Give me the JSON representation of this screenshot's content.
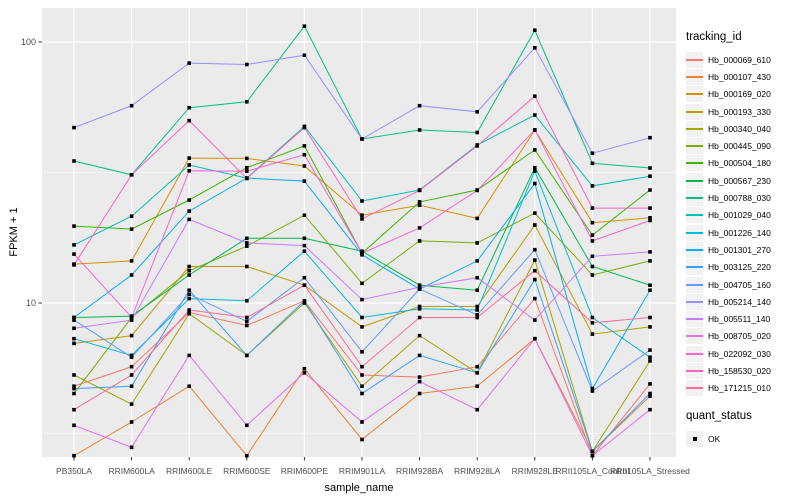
{
  "figure": {
    "bg": "#FFFFFF",
    "panel_bg": "#EBEBEB",
    "grid_color": "#FFFFFF",
    "tick_color": "#333333",
    "tick_label_color": "#4D4D4D",
    "point_color": "#000000"
  },
  "chart_data": {
    "type": "line",
    "xlabel": "sample_name",
    "ylabel": "FPKM + 1",
    "y_scale": "log10",
    "y_ticks": [
      100,
      10
    ],
    "y_tick_labels": [
      "100",
      "10"
    ],
    "ylim": [
      2.5,
      120
    ],
    "grid": true,
    "points_shape": "square",
    "legend_position": "right",
    "categories": [
      "PB350LA",
      "RRIM600LA",
      "RRIM600LE",
      "RRIM600SE",
      "RRIM600PE",
      "RRIM901LA",
      "RRIM928BA",
      "RRIM928LA",
      "RRIM928LE",
      "RRII105LA_Control",
      "RRII105LA_Stressed"
    ],
    "series": [
      {
        "name": "Hb_000069_610",
        "color": "#F8766D",
        "values": [
          4.8,
          5.7,
          9.2,
          8.2,
          10.2,
          5.3,
          5.2,
          5.7,
          10.4,
          2.6,
          4.9
        ]
      },
      {
        "name": "Hb_000107_430",
        "color": "#EA8331",
        "values": [
          2.6,
          3.5,
          4.8,
          2.6,
          5.6,
          3.0,
          4.5,
          4.8,
          7.3,
          2.7,
          4.4
        ]
      },
      {
        "name": "Hb_000169_020",
        "color": "#D89000",
        "values": [
          14.1,
          14.5,
          35.9,
          35.8,
          33.5,
          21.7,
          23.7,
          21.1,
          46.0,
          20.3,
          21.2
        ]
      },
      {
        "name": "Hb_000193_330",
        "color": "#C09B00",
        "values": [
          7.0,
          7.5,
          13.8,
          13.8,
          11.7,
          8.1,
          9.7,
          9.7,
          19.9,
          7.6,
          8.1
        ]
      },
      {
        "name": "Hb_000340_040",
        "color": "#A3A500",
        "values": [
          5.3,
          4.1,
          9.1,
          6.3,
          10.0,
          4.8,
          7.5,
          5.4,
          14.6,
          2.7,
          6.0
        ]
      },
      {
        "name": "Hb_000445_090",
        "color": "#7CAE00",
        "values": [
          4.5,
          8.8,
          13.3,
          16.5,
          21.7,
          11.9,
          17.3,
          17.0,
          22.1,
          12.8,
          14.5
        ]
      },
      {
        "name": "Hb_000504_180",
        "color": "#39B600",
        "values": [
          19.7,
          19.2,
          24.8,
          33.0,
          40.0,
          15.5,
          24.4,
          27.1,
          38.6,
          18.2,
          27.1
        ]
      },
      {
        "name": "Hb_000567_230",
        "color": "#00BB4E",
        "values": [
          8.8,
          8.9,
          12.8,
          17.7,
          17.7,
          15.8,
          11.7,
          11.2,
          33.0,
          13.8,
          11.7
        ]
      },
      {
        "name": "Hb_000788_030",
        "color": "#00C087",
        "values": [
          35.0,
          31.0,
          56.0,
          59.0,
          115.0,
          42.5,
          46.0,
          45.0,
          111.0,
          34.3,
          32.9
        ]
      },
      {
        "name": "Hb_001029_040",
        "color": "#00C0B8",
        "values": [
          16.7,
          21.5,
          33.8,
          30.1,
          47.5,
          24.6,
          27.1,
          40.3,
          52.5,
          28.1,
          30.6
        ]
      },
      {
        "name": "Hb_001226_140",
        "color": "#00BCD8",
        "values": [
          7.3,
          6.3,
          10.4,
          10.2,
          15.8,
          8.8,
          9.5,
          9.4,
          32.0,
          8.8,
          6.2
        ]
      },
      {
        "name": "Hb_001301_270",
        "color": "#00B0F6",
        "values": [
          8.8,
          12.8,
          22.5,
          30.1,
          29.3,
          15.3,
          11.3,
          14.5,
          28.7,
          4.7,
          11.2
        ]
      },
      {
        "name": "Hb_003125_220",
        "color": "#35A2FF",
        "values": [
          4.7,
          4.8,
          11.2,
          6.3,
          10.2,
          4.5,
          6.3,
          5.4,
          12.3,
          2.7,
          4.5
        ]
      },
      {
        "name": "Hb_004705_160",
        "color": "#619CFF",
        "values": [
          8.6,
          6.2,
          10.8,
          8.5,
          12.5,
          6.5,
          11.3,
          9.0,
          16.0,
          4.6,
          6.6
        ]
      },
      {
        "name": "Hb_005214_140",
        "color": "#9590FF",
        "values": [
          47.0,
          57.0,
          83.0,
          82.0,
          89.0,
          42.5,
          57.0,
          54.0,
          95.0,
          37.5,
          43.0
        ]
      },
      {
        "name": "Hb_005511_140",
        "color": "#C77CFF",
        "values": [
          8.0,
          8.6,
          20.9,
          17.0,
          16.6,
          10.3,
          11.5,
          12.5,
          8.6,
          15.1,
          15.7
        ]
      },
      {
        "name": "Hb_008705_020",
        "color": "#E76BF3",
        "values": [
          3.4,
          2.8,
          6.3,
          3.4,
          5.4,
          3.5,
          5.0,
          3.9,
          7.3,
          2.6,
          3.9
        ]
      },
      {
        "name": "Hb_022092_030",
        "color": "#FA62DB",
        "values": [
          15.4,
          8.8,
          32.1,
          32.0,
          37.0,
          15.5,
          19.4,
          27.0,
          46.1,
          17.3,
          20.7
        ]
      },
      {
        "name": "Hb_158530_020",
        "color": "#FF62BC",
        "values": [
          14.0,
          31.0,
          50.0,
          30.0,
          47.0,
          21.0,
          27.0,
          40.0,
          62.0,
          23.1,
          23.1
        ]
      },
      {
        "name": "Hb_171215_010",
        "color": "#FF6A98",
        "values": [
          3.9,
          5.3,
          9.4,
          8.8,
          11.7,
          5.7,
          8.8,
          8.8,
          13.3,
          8.4,
          8.8
        ]
      }
    ],
    "legend": {
      "title": "tracking_id",
      "status_title": "quant_status",
      "status_items": [
        "OK"
      ]
    }
  }
}
